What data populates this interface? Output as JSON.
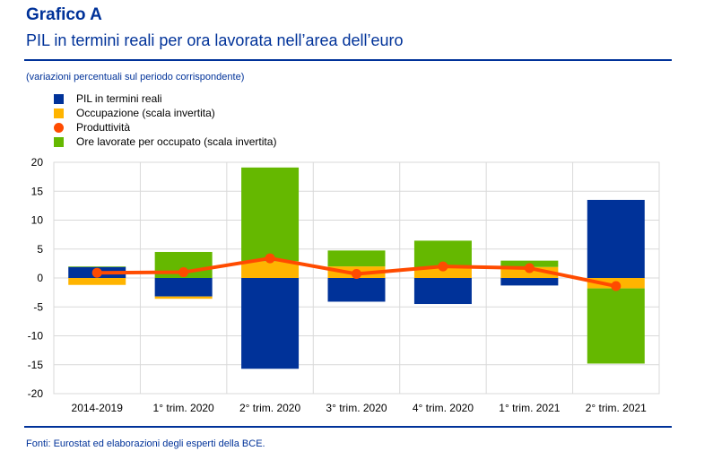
{
  "header": {
    "title": "Grafico A",
    "subtitle": "PIL in termini reali per ora lavorata nell’area dell’euro",
    "note": "(variazioni percentuali sul periodo corrispondente)"
  },
  "footer": {
    "source": "Fonti: Eurostat ed elaborazioni degli esperti della BCE."
  },
  "colors": {
    "pil": "#003299",
    "occupazione": "#FFB400",
    "produttivita": "#FF4B00",
    "ore": "#65B800",
    "text_blue": "#003299",
    "grid": "#D9D9D9"
  },
  "chart_data": {
    "type": "bar",
    "stacked": true,
    "title": "PIL in termini reali per ora lavorata nell’area dell’euro",
    "subtitle": "(variazioni percentuali sul periodo corrispondente)",
    "xlabel": "",
    "ylabel": "",
    "ylim": [
      -20,
      20
    ],
    "yticks": [
      20,
      15,
      10,
      5,
      0,
      -5,
      -10,
      -15,
      -20
    ],
    "grid": true,
    "legend_position": "top-left",
    "categories": [
      "2014-2019",
      "1° trim. 2020",
      "2° trim. 2020",
      "3° trim. 2020",
      "4° trim. 2020",
      "1° trim. 2021",
      "2° trim. 2021"
    ],
    "series": [
      {
        "name": "PIL in termini reali",
        "type": "bar",
        "color": "#003299",
        "values": [
          1.9,
          -3.2,
          -15.7,
          -4.1,
          -4.5,
          -1.3,
          13.5
        ]
      },
      {
        "name": "Occupazione (scala invertita)",
        "type": "bar",
        "color": "#FFB400",
        "values": [
          -1.2,
          -0.4,
          2.9,
          2.0,
          1.8,
          1.9,
          -1.8
        ]
      },
      {
        "name": "Produttività",
        "type": "line",
        "color": "#FF4B00",
        "values": [
          0.9,
          1.0,
          3.4,
          0.7,
          2.0,
          1.7,
          -1.4
        ]
      },
      {
        "name": "Ore lavorate per occupato (scala invertita)",
        "type": "bar",
        "color": "#65B800",
        "values": [
          0.1,
          4.5,
          16.2,
          2.75,
          4.65,
          1.1,
          -13.0
        ]
      }
    ]
  }
}
